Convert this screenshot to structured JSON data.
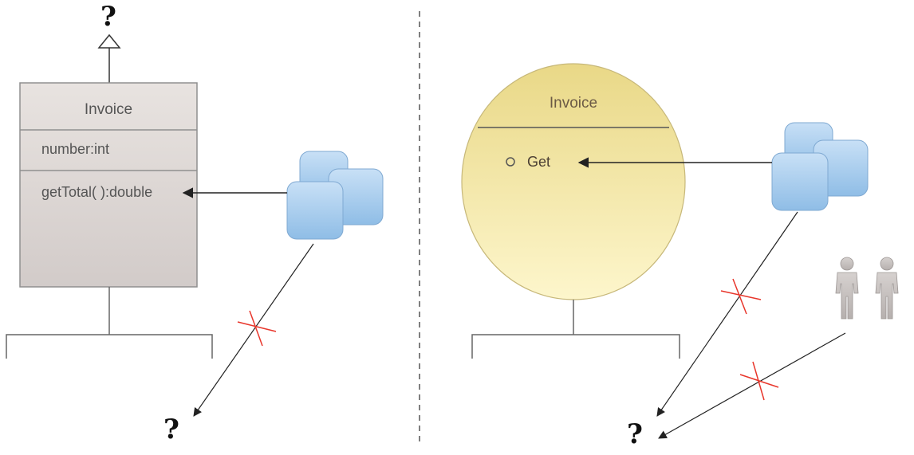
{
  "left_diagram": {
    "class_name": "Invoice",
    "attribute": "number:int",
    "operation": "getTotal( ):double",
    "parent_marker": "?",
    "access_target_marker": "?"
  },
  "right_diagram": {
    "class_name": "Invoice",
    "operation": "Get",
    "access_target_marker": "?"
  },
  "colors": {
    "class_box_fill_top": "#e6e1de",
    "class_box_fill_bottom": "#d4cccb",
    "class_box_stroke": "#8f8f8f",
    "circle_fill_top": "#ead98d",
    "circle_fill_bottom": "#fcf5c8",
    "cube_fill": "#a9cdee",
    "cross_color": "#e8362b",
    "line_color": "#222222",
    "divider_color": "#555555"
  },
  "icons": [
    "stacked-cubes-icon",
    "stacked-cubes-icon",
    "two-people-icon"
  ]
}
